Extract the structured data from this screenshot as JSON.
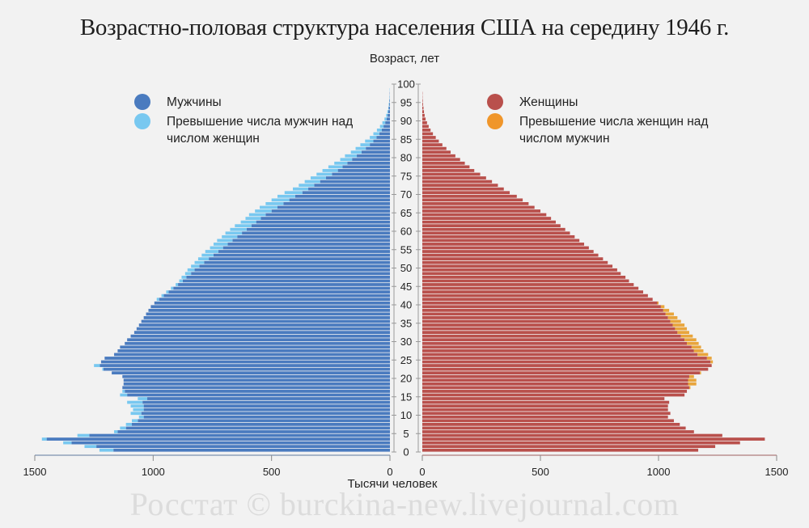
{
  "title": "Возрастно-половая структура населения США на середину 1946 г.",
  "y_axis_label": "Возраст, лет",
  "x_axis_label": "Тысячи человек",
  "watermark": "Росстат © burckina-new.livejournal.com",
  "legend": {
    "left": [
      {
        "label": "Мужчины",
        "color": "#4a7bbf"
      },
      {
        "label": "Превышение числа мужчин над числом женщин",
        "color": "#78c8f0"
      }
    ],
    "right": [
      {
        "label": "Женщины",
        "color": "#b9504c"
      },
      {
        "label": "Превышение числа женщин над числом мужчин",
        "color": "#f0962a"
      }
    ]
  },
  "colors": {
    "male": "#4a7bbf",
    "male_excess": "#78c8f0",
    "female": "#b9504c",
    "female_excess": "#e8a53c",
    "axis": "#999999",
    "background": "#f2f2f2"
  },
  "axes": {
    "y_ticks": [
      0,
      5,
      10,
      15,
      20,
      25,
      30,
      35,
      40,
      45,
      50,
      55,
      60,
      65,
      70,
      75,
      80,
      85,
      90,
      95,
      100
    ],
    "x_ticks_left": [
      1500,
      1000,
      500,
      0
    ],
    "x_ticks_right": [
      0,
      500,
      1000,
      1500
    ],
    "x_max": 1500,
    "y_max": 100
  },
  "chart_data": {
    "type": "bar",
    "subtype": "population-pyramid",
    "title": "Возрастно-половая структура населения США на середину 1946 г.",
    "xlabel": "Тысячи человек",
    "ylabel": "Возраст, лет",
    "xlim": [
      0,
      1500
    ],
    "ylim": [
      0,
      100
    ],
    "categories": [
      0,
      1,
      2,
      3,
      4,
      5,
      6,
      7,
      8,
      9,
      10,
      11,
      12,
      13,
      14,
      15,
      16,
      17,
      18,
      19,
      20,
      21,
      22,
      23,
      24,
      25,
      26,
      27,
      28,
      29,
      30,
      31,
      32,
      33,
      34,
      35,
      36,
      37,
      38,
      39,
      40,
      41,
      42,
      43,
      44,
      45,
      46,
      47,
      48,
      49,
      50,
      51,
      52,
      53,
      54,
      55,
      56,
      57,
      58,
      59,
      60,
      61,
      62,
      63,
      64,
      65,
      66,
      67,
      68,
      69,
      70,
      71,
      72,
      73,
      74,
      75,
      76,
      77,
      78,
      79,
      80,
      81,
      82,
      83,
      84,
      85,
      86,
      87,
      88,
      89,
      90,
      91,
      92,
      93,
      94,
      95,
      96,
      97,
      98,
      99,
      100
    ],
    "series": [
      {
        "name": "Мужчины",
        "values": [
          1227,
          1290,
          1380,
          1470,
          1320,
          1165,
          1140,
          1115,
          1090,
          1060,
          1095,
          1085,
          1095,
          1110,
          1065,
          1140,
          1130,
          1130,
          1125,
          1125,
          1130,
          1175,
          1215,
          1250,
          1220,
          1205,
          1165,
          1150,
          1140,
          1120,
          1110,
          1095,
          1080,
          1070,
          1060,
          1050,
          1040,
          1030,
          1020,
          1010,
          995,
          985,
          965,
          945,
          925,
          905,
          890,
          880,
          865,
          855,
          840,
          825,
          810,
          795,
          780,
          760,
          745,
          730,
          710,
          695,
          675,
          655,
          630,
          610,
          595,
          570,
          550,
          525,
          500,
          475,
          445,
          410,
          385,
          360,
          335,
          310,
          285,
          260,
          235,
          210,
          190,
          165,
          145,
          125,
          105,
          85,
          70,
          55,
          42,
          32,
          23,
          16,
          11,
          7,
          5,
          3,
          2,
          1,
          1,
          0,
          0
        ]
      },
      {
        "name": "Женщины",
        "values": [
          1168,
          1240,
          1345,
          1450,
          1270,
          1150,
          1115,
          1090,
          1065,
          1040,
          1050,
          1040,
          1040,
          1045,
          1025,
          1110,
          1120,
          1135,
          1160,
          1160,
          1150,
          1180,
          1210,
          1225,
          1230,
          1225,
          1210,
          1190,
          1180,
          1170,
          1160,
          1145,
          1130,
          1120,
          1110,
          1095,
          1080,
          1065,
          1045,
          1025,
          1000,
          975,
          955,
          935,
          915,
          895,
          875,
          860,
          840,
          825,
          805,
          785,
          765,
          745,
          725,
          705,
          685,
          665,
          645,
          625,
          605,
          585,
          565,
          545,
          525,
          500,
          475,
          450,
          425,
          400,
          370,
          345,
          320,
          295,
          270,
          245,
          220,
          200,
          180,
          160,
          140,
          120,
          102,
          85,
          70,
          57,
          45,
          35,
          27,
          20,
          14,
          10,
          7,
          5,
          3,
          2,
          1,
          1,
          0,
          0,
          0
        ]
      }
    ],
    "legend": [
      "Мужчины",
      "Превышение числа мужчин над числом женщин",
      "Женщины",
      "Превышение числа женщин над числом мужчин"
    ],
    "grid": false,
    "legend_position": "top"
  }
}
